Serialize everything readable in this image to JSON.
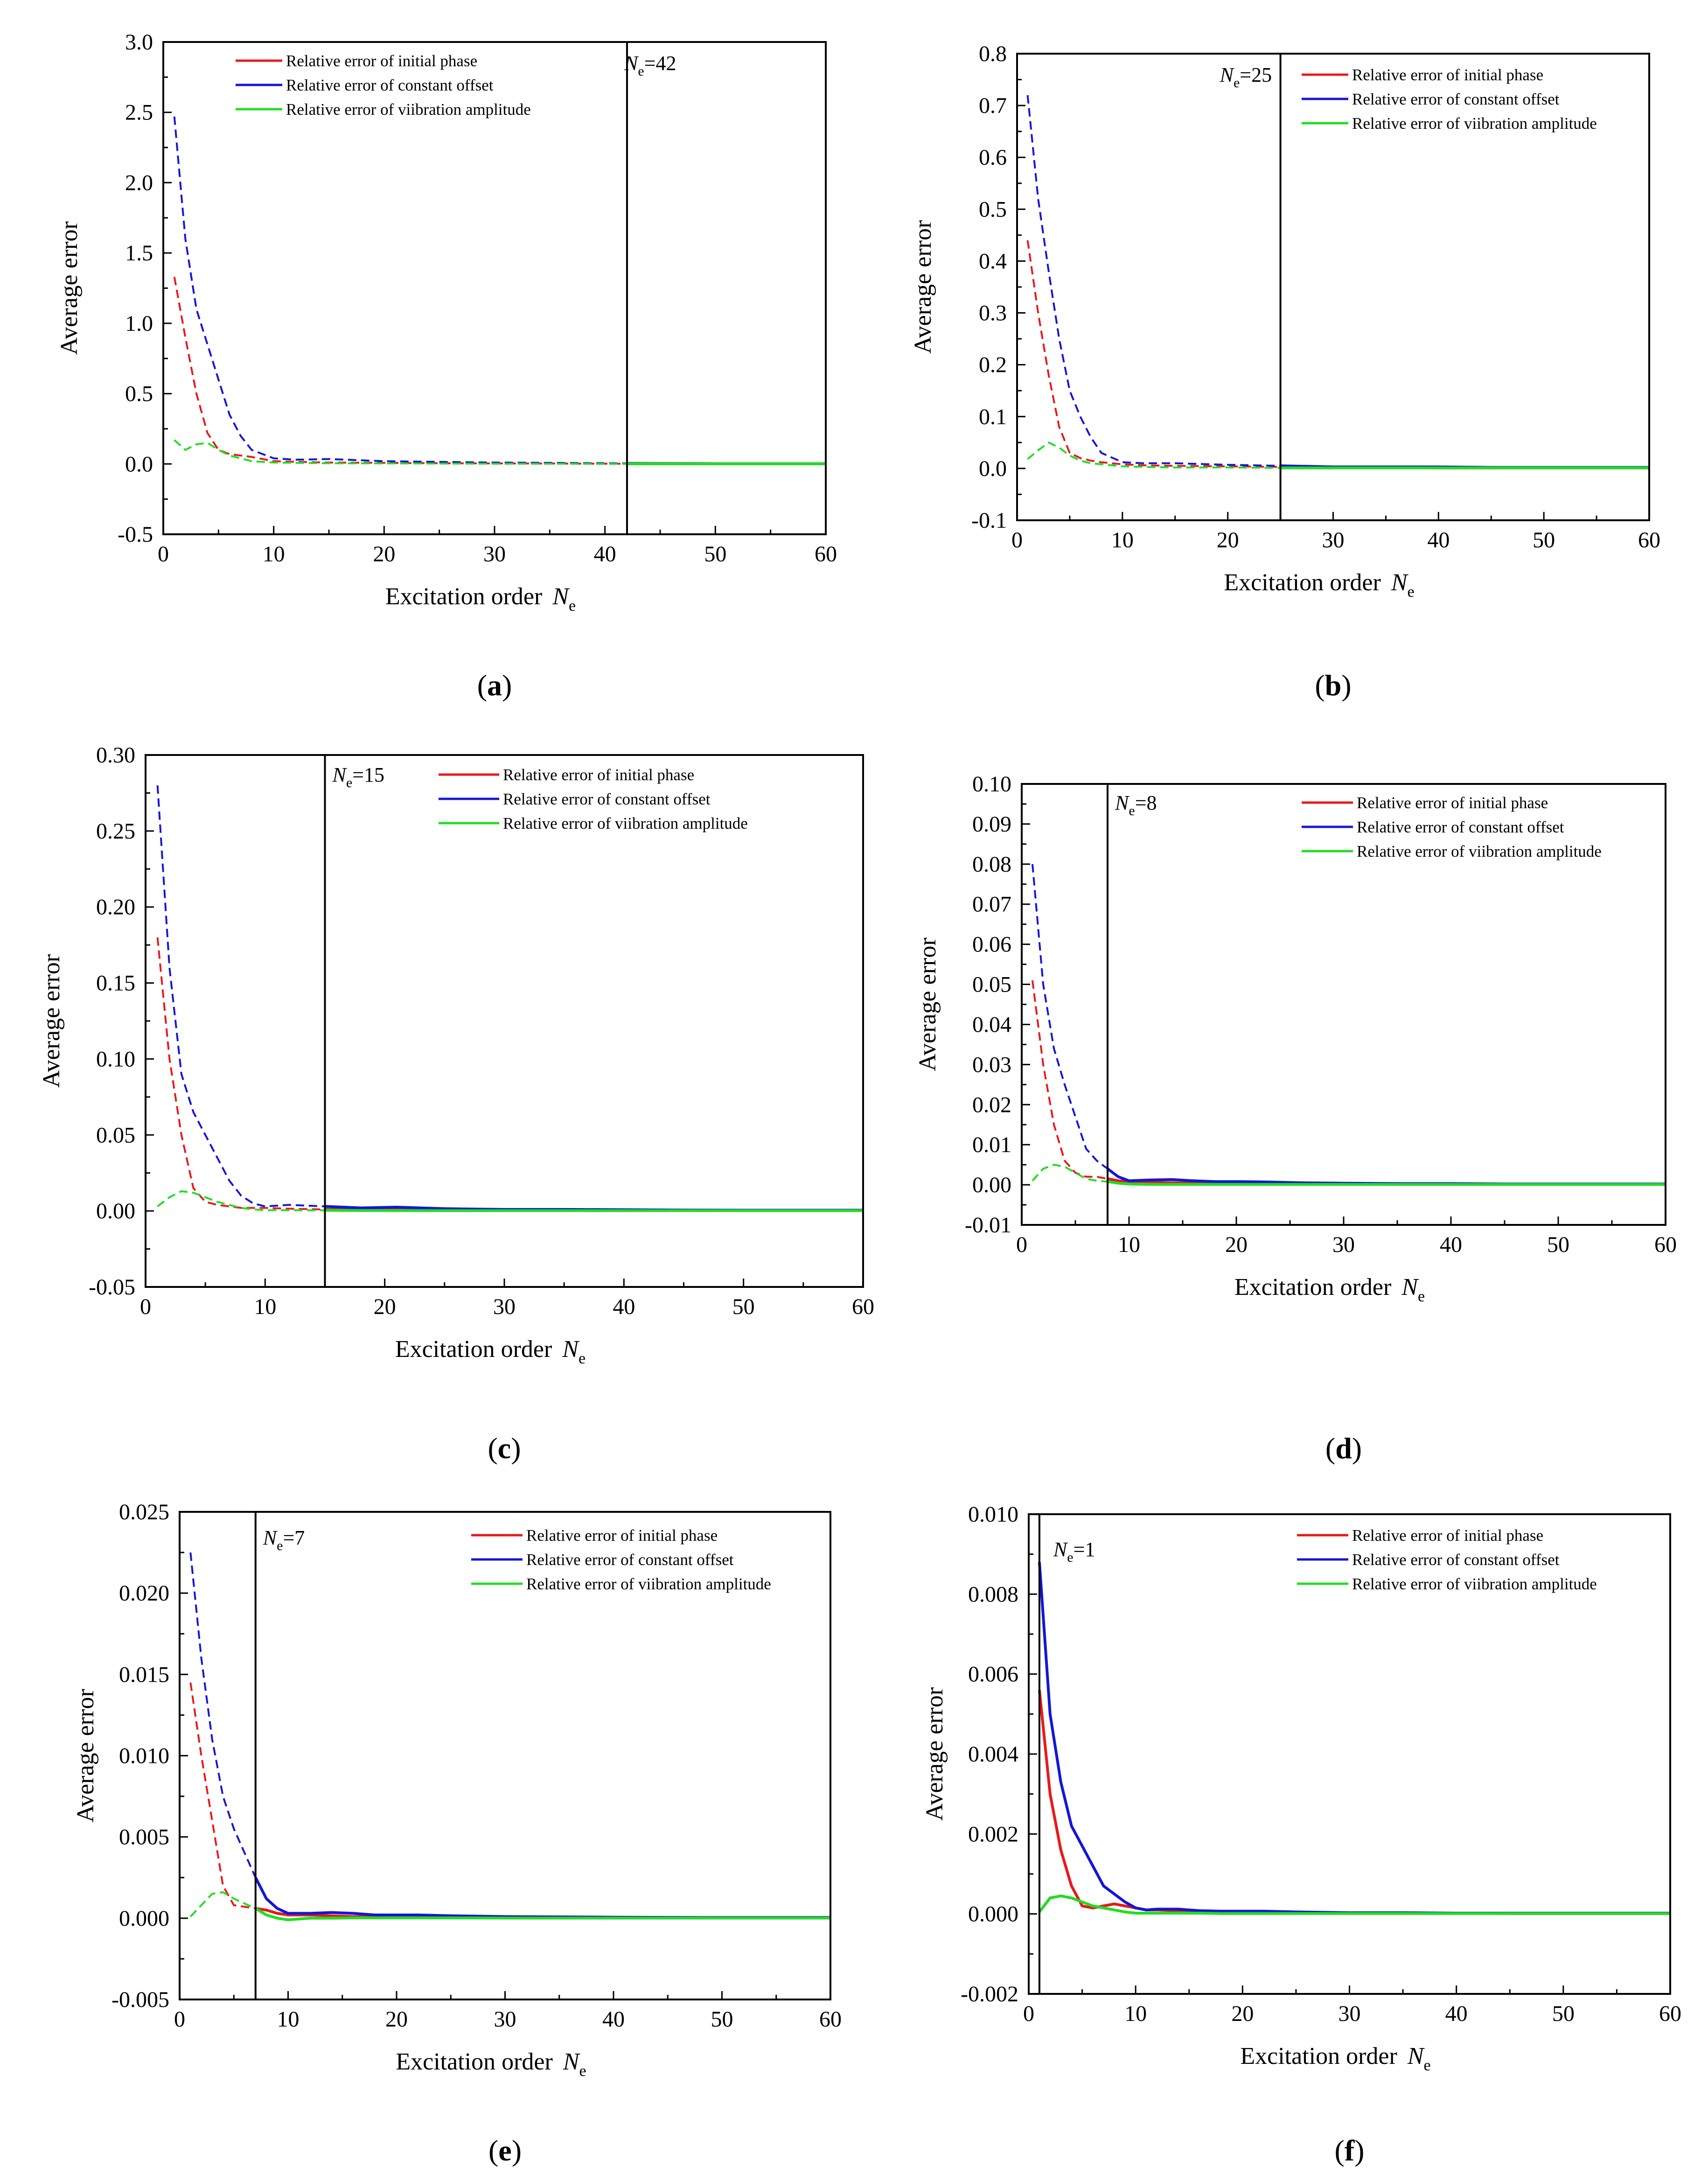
{
  "figure": {
    "legend_labels": [
      "Relative error of initial phase",
      "Relative error of constant offset",
      "Relative error of viibration amplitude"
    ],
    "series_colors": [
      "#e8191c",
      "#1515d8",
      "#22dd22"
    ],
    "xlabel_main": "Excitation order",
    "xlabel_var": "N",
    "xlabel_sub": "e",
    "ylabel": "Average error"
  },
  "chart_data": [
    {
      "type": "line",
      "panel": "a",
      "caption": "a",
      "threshold_label": "=42",
      "threshold_x": 42,
      "xlim": [
        0,
        60
      ],
      "xticks": [
        "0",
        "10",
        "20",
        "30",
        "40",
        "50",
        "60"
      ],
      "ylim": [
        -0.5,
        3.0
      ],
      "yticks": [
        "-0.5",
        "0.0",
        "0.5",
        "1.0",
        "1.5",
        "2.0",
        "2.5",
        "3.0"
      ],
      "x": [
        1,
        2,
        3,
        4,
        5,
        6,
        7,
        8,
        10,
        12,
        15,
        20,
        25,
        30,
        35,
        40,
        42,
        45,
        50,
        55,
        60
      ],
      "series": [
        {
          "name": "Relative error of initial phase",
          "values": [
            1.33,
            0.9,
            0.5,
            0.22,
            0.1,
            0.07,
            0.06,
            0.05,
            0.02,
            0.015,
            0.01,
            0.008,
            0.005,
            0.004,
            0.003,
            0.002,
            0.002,
            0.001,
            0.001,
            0.001,
            0.001
          ]
        },
        {
          "name": "Relative error of constant offset",
          "values": [
            2.47,
            1.6,
            1.1,
            0.85,
            0.6,
            0.35,
            0.2,
            0.1,
            0.04,
            0.03,
            0.035,
            0.02,
            0.015,
            0.01,
            0.008,
            0.005,
            0.004,
            0.003,
            0.002,
            0.002,
            0.002
          ]
        },
        {
          "name": "Relative error of viibration amplitude",
          "values": [
            0.17,
            0.1,
            0.14,
            0.15,
            0.1,
            0.06,
            0.04,
            0.02,
            0.01,
            0.008,
            0.005,
            0.004,
            0.003,
            0.002,
            0.002,
            0.001,
            0.001,
            0.001,
            0.001,
            0.001,
            0.001
          ]
        }
      ]
    },
    {
      "type": "line",
      "panel": "b",
      "caption": "b",
      "threshold_label": "=25",
      "threshold_x": 25,
      "xlim": [
        0,
        60
      ],
      "xticks": [
        "0",
        "10",
        "20",
        "30",
        "40",
        "50",
        "60"
      ],
      "ylim": [
        -0.1,
        0.8
      ],
      "yticks": [
        "-0.1",
        "0.0",
        "0.1",
        "0.2",
        "0.3",
        "0.4",
        "0.5",
        "0.6",
        "0.7",
        "0.8"
      ],
      "x": [
        1,
        2,
        3,
        4,
        5,
        6,
        7,
        8,
        10,
        12,
        15,
        20,
        25,
        30,
        35,
        40,
        45,
        50,
        55,
        60
      ],
      "series": [
        {
          "name": "Relative error of initial phase",
          "values": [
            0.44,
            0.3,
            0.18,
            0.08,
            0.03,
            0.02,
            0.015,
            0.012,
            0.008,
            0.006,
            0.005,
            0.004,
            0.003,
            0.002,
            0.002,
            0.001,
            0.001,
            0.001,
            0.001,
            0.001
          ]
        },
        {
          "name": "Relative error of constant offset",
          "values": [
            0.72,
            0.52,
            0.38,
            0.25,
            0.15,
            0.1,
            0.06,
            0.03,
            0.012,
            0.01,
            0.01,
            0.007,
            0.005,
            0.003,
            0.003,
            0.003,
            0.002,
            0.002,
            0.002,
            0.002
          ]
        },
        {
          "name": "Relative error of viibration amplitude",
          "values": [
            0.018,
            0.035,
            0.05,
            0.04,
            0.025,
            0.015,
            0.01,
            0.008,
            0.004,
            0.003,
            0.002,
            0.002,
            0.001,
            0.001,
            0.001,
            0.001,
            0.001,
            0.001,
            0.001,
            0.001
          ]
        }
      ]
    },
    {
      "type": "line",
      "panel": "c",
      "caption": "c",
      "threshold_label": "=15",
      "threshold_x": 15,
      "xlim": [
        0,
        60
      ],
      "xticks": [
        "0",
        "10",
        "20",
        "30",
        "40",
        "50",
        "60"
      ],
      "ylim": [
        -0.05,
        0.3
      ],
      "yticks": [
        "-0.05",
        "0.00",
        "0.05",
        "0.10",
        "0.15",
        "0.20",
        "0.25",
        "0.30"
      ],
      "x": [
        1,
        2,
        3,
        4,
        5,
        6,
        7,
        8,
        9,
        10,
        12,
        15,
        18,
        21,
        25,
        30,
        35,
        40,
        45,
        50,
        55,
        60
      ],
      "series": [
        {
          "name": "Relative error of initial phase",
          "values": [
            0.18,
            0.1,
            0.05,
            0.015,
            0.006,
            0.004,
            0.003,
            0.002,
            0.002,
            0.002,
            0.0015,
            0.001,
            0.001,
            0.001,
            0.001,
            0.0005,
            0.0005,
            0.0005,
            0.0003,
            0.0003,
            0.0003,
            0.0003
          ]
        },
        {
          "name": "Relative error of constant offset",
          "values": [
            0.28,
            0.16,
            0.09,
            0.065,
            0.05,
            0.035,
            0.02,
            0.01,
            0.005,
            0.003,
            0.004,
            0.003,
            0.002,
            0.0025,
            0.0015,
            0.001,
            0.001,
            0.0008,
            0.0006,
            0.0005,
            0.0005,
            0.0005
          ]
        },
        {
          "name": "Relative error of viibration amplitude",
          "values": [
            0.003,
            0.009,
            0.013,
            0.012,
            0.009,
            0.006,
            0.004,
            0.002,
            0.001,
            0.0005,
            0.0005,
            0.0004,
            0.0003,
            0.0003,
            0.0002,
            0.0002,
            0.0002,
            0.0002,
            0.0002,
            0.0002,
            0.0002,
            0.0002
          ]
        }
      ]
    },
    {
      "type": "line",
      "panel": "d",
      "caption": "d",
      "threshold_label": "=8",
      "threshold_x": 8,
      "xlim": [
        0,
        60
      ],
      "xticks": [
        "0",
        "10",
        "20",
        "30",
        "40",
        "50",
        "60"
      ],
      "ylim": [
        -0.01,
        0.1
      ],
      "yticks": [
        "-0.01",
        "0.00",
        "0.01",
        "0.02",
        "0.03",
        "0.04",
        "0.05",
        "0.06",
        "0.07",
        "0.08",
        "0.09",
        "0.10"
      ],
      "x": [
        1,
        2,
        3,
        4,
        5,
        6,
        7,
        8,
        9,
        10,
        12,
        14,
        16,
        18,
        20,
        23,
        26,
        30,
        35,
        40,
        45,
        50,
        55,
        60
      ],
      "series": [
        {
          "name": "Relative error of initial phase",
          "values": [
            0.051,
            0.03,
            0.015,
            0.006,
            0.003,
            0.002,
            0.002,
            0.0015,
            0.001,
            0.0008,
            0.0006,
            0.0005,
            0.0004,
            0.0003,
            0.0003,
            0.0002,
            0.0002,
            0.0002,
            0.0001,
            0.0001,
            0.0001,
            0.0001,
            0.0001,
            0.0001
          ]
        },
        {
          "name": "Relative error of constant offset",
          "values": [
            0.08,
            0.05,
            0.034,
            0.025,
            0.017,
            0.009,
            0.006,
            0.004,
            0.002,
            0.001,
            0.0012,
            0.0013,
            0.001,
            0.0008,
            0.0008,
            0.0007,
            0.0005,
            0.0004,
            0.0003,
            0.0003,
            0.0002,
            0.0002,
            0.0002,
            0.0002
          ]
        },
        {
          "name": "Relative error of viibration amplitude",
          "values": [
            0.001,
            0.004,
            0.005,
            0.0045,
            0.003,
            0.0015,
            0.001,
            0.0008,
            0.0004,
            0.0002,
            0.0001,
            0.0001,
            0.0001,
            0.0001,
            0.0001,
            0.0001,
            0.0001,
            0.0001,
            0.0001,
            0.0001,
            0.0001,
            0.0001,
            0.0001,
            0.0001
          ]
        }
      ]
    },
    {
      "type": "line",
      "panel": "e",
      "caption": "e",
      "threshold_label": "=7",
      "threshold_x": 7,
      "xlim": [
        0,
        60
      ],
      "xticks": [
        "0",
        "10",
        "20",
        "30",
        "40",
        "50",
        "60"
      ],
      "ylim": [
        -0.005,
        0.025
      ],
      "yticks": [
        "-0.005",
        "0.000",
        "0.005",
        "0.010",
        "0.015",
        "0.020",
        "0.025"
      ],
      "x": [
        1,
        2,
        3,
        4,
        5,
        6,
        7,
        8,
        9,
        10,
        12,
        14,
        16,
        18,
        20,
        22,
        25,
        30,
        35,
        40,
        45,
        50,
        55,
        60
      ],
      "series": [
        {
          "name": "Relative error of initial phase",
          "values": [
            0.0145,
            0.01,
            0.006,
            0.002,
            0.0008,
            0.0007,
            0.0006,
            0.0005,
            0.0003,
            0.0002,
            0.0002,
            0.00015,
            0.0001,
            0.0001,
            0.0001,
            0.0001,
            8e-05,
            6e-05,
            5e-05,
            4e-05,
            3e-05,
            3e-05,
            3e-05,
            3e-05
          ]
        },
        {
          "name": "Relative error of constant offset",
          "values": [
            0.0225,
            0.016,
            0.011,
            0.0075,
            0.0055,
            0.004,
            0.0025,
            0.0012,
            0.0006,
            0.0003,
            0.0003,
            0.00035,
            0.0003,
            0.0002,
            0.0002,
            0.0002,
            0.00015,
            0.0001,
            8e-05,
            6e-05,
            5e-05,
            4e-05,
            4e-05,
            4e-05
          ]
        },
        {
          "name": "Relative error of viibration amplitude",
          "values": [
            0.0001,
            0.0008,
            0.0015,
            0.0016,
            0.0012,
            0.0009,
            0.0006,
            0.0002,
            0.0,
            -0.0001,
            0.0,
            0.0,
            2e-05,
            2e-05,
            2e-05,
            2e-05,
            2e-05,
            1e-05,
            1e-05,
            1e-05,
            1e-05,
            1e-05,
            1e-05,
            1e-05
          ]
        }
      ]
    },
    {
      "type": "line",
      "panel": "f",
      "caption": "f",
      "threshold_label": "=1",
      "threshold_x": 1,
      "xlim": [
        0,
        60
      ],
      "xticks": [
        "0",
        "10",
        "20",
        "30",
        "40",
        "50",
        "60"
      ],
      "ylim": [
        -0.002,
        0.01
      ],
      "yticks": [
        "-0.002",
        "0.000",
        "0.002",
        "0.004",
        "0.006",
        "0.008",
        "0.010"
      ],
      "x": [
        1,
        2,
        3,
        4,
        5,
        6,
        7,
        8,
        9,
        10,
        11,
        12,
        14,
        16,
        18,
        20,
        22,
        25,
        30,
        35,
        40,
        45,
        50,
        55,
        60
      ],
      "series": [
        {
          "name": "Relative error of initial phase",
          "values": [
            0.0056,
            0.003,
            0.0016,
            0.0007,
            0.0002,
            0.00015,
            0.0002,
            0.00025,
            0.0002,
            0.00015,
            0.0001,
            0.0001,
            8e-05,
            6e-05,
            5e-05,
            5e-05,
            4e-05,
            3e-05,
            2e-05,
            2e-05,
            2e-05,
            1e-05,
            1e-05,
            1e-05,
            1e-05
          ]
        },
        {
          "name": "Relative error of constant offset",
          "values": [
            0.0088,
            0.005,
            0.0033,
            0.0022,
            0.0017,
            0.0012,
            0.0007,
            0.0005,
            0.0003,
            0.00015,
            0.0001,
            0.00012,
            0.00012,
            8e-05,
            7e-05,
            7e-05,
            7e-05,
            5e-05,
            3e-05,
            3e-05,
            2e-05,
            2e-05,
            2e-05,
            2e-05,
            2e-05
          ]
        },
        {
          "name": "Relative error of viibration amplitude",
          "values": [
            5e-05,
            0.0004,
            0.00045,
            0.0004,
            0.0003,
            0.0002,
            0.00015,
            0.0001,
            5e-05,
            2e-05,
            2e-05,
            2e-05,
            2e-05,
            2e-05,
            1e-05,
            1e-05,
            1e-05,
            1e-05,
            1e-05,
            1e-05,
            1e-05,
            1e-05,
            1e-05,
            1e-05,
            1e-05
          ]
        }
      ]
    }
  ]
}
